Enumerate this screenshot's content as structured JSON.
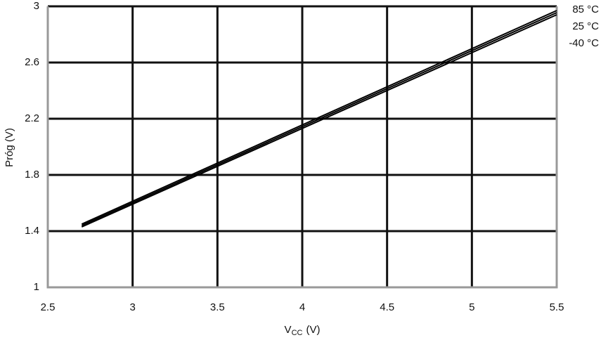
{
  "chart_data": {
    "type": "line",
    "y_label": "Próg (V)",
    "x_label_parts": [
      "V",
      "CC",
      "(V)"
    ],
    "x": [
      2.7,
      5.5
    ],
    "series": [
      {
        "name": "85 °C",
        "color": "#000000",
        "values": [
          1.45,
          2.97
        ]
      },
      {
        "name": "25 °C",
        "color": "#000000",
        "values": [
          1.44,
          2.955
        ]
      },
      {
        "name": "-40 °C",
        "color": "#000000",
        "values": [
          1.43,
          2.94
        ]
      }
    ],
    "xlim": [
      2.5,
      5.5
    ],
    "xticks": [
      2.5,
      3,
      3.5,
      4,
      4.5,
      5,
      5.5
    ],
    "ylim": [
      1,
      3
    ],
    "yticks": [
      1,
      1.4,
      1.8,
      2.2,
      2.6,
      3
    ],
    "grid": true,
    "legend": "right"
  }
}
